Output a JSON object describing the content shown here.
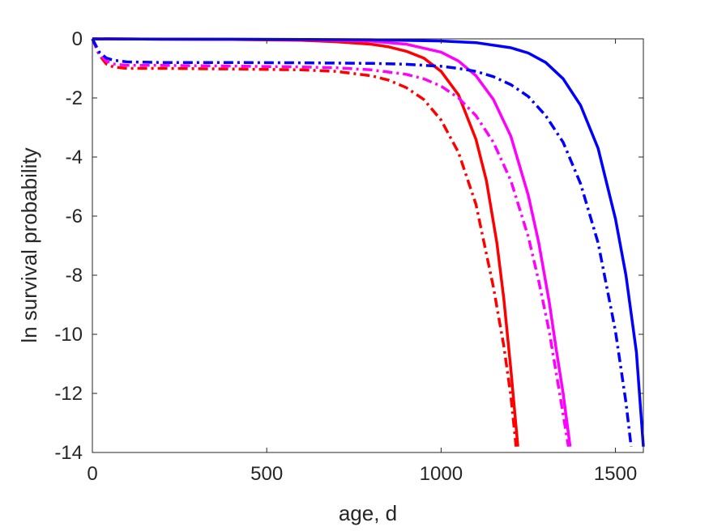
{
  "chart_data": {
    "type": "line",
    "title": "",
    "xlabel": "age, d",
    "ylabel": "ln survival probability",
    "xlim": [
      0,
      1580
    ],
    "ylim": [
      -14,
      0
    ],
    "xticks": [
      0,
      500,
      1000,
      1500
    ],
    "yticks": [
      0,
      -2,
      -4,
      -6,
      -8,
      -10,
      -12,
      -14
    ],
    "xtick_labels": [
      "0",
      "500",
      "1000",
      "1500"
    ],
    "ytick_labels": [
      "0",
      "-2",
      "-4",
      "-6",
      "-8",
      "-10",
      "-12",
      "-14"
    ],
    "grid": false,
    "legend": "none",
    "series": [
      {
        "color": "#ff0000",
        "style": "solid",
        "x": [
          0,
          200,
          400,
          600,
          700,
          800,
          850,
          900,
          950,
          1000,
          1050,
          1100,
          1130,
          1160,
          1180,
          1200,
          1220
        ],
        "y": [
          0,
          -0.01,
          -0.02,
          -0.05,
          -0.1,
          -0.18,
          -0.27,
          -0.42,
          -0.65,
          -1.1,
          -1.9,
          -3.4,
          -4.8,
          -6.9,
          -8.8,
          -11.2,
          -13.8
        ]
      },
      {
        "color": "#ff0000",
        "style": "dashdot",
        "x": [
          0,
          20,
          40,
          60,
          100,
          200,
          400,
          600,
          700,
          800,
          850,
          900,
          950,
          1000,
          1050,
          1100,
          1150,
          1180,
          1200,
          1215
        ],
        "y": [
          0,
          -0.55,
          -0.85,
          -0.95,
          -1.0,
          -1.0,
          -1.02,
          -1.05,
          -1.1,
          -1.25,
          -1.4,
          -1.65,
          -2.05,
          -2.75,
          -3.85,
          -5.6,
          -8.4,
          -10.4,
          -12.1,
          -13.8
        ]
      },
      {
        "color": "#ff00ff",
        "style": "solid",
        "x": [
          0,
          200,
          400,
          600,
          800,
          900,
          1000,
          1050,
          1100,
          1150,
          1200,
          1250,
          1280,
          1310,
          1330,
          1350,
          1370
        ],
        "y": [
          0,
          -0.01,
          -0.02,
          -0.03,
          -0.08,
          -0.18,
          -0.45,
          -0.75,
          -1.25,
          -2.05,
          -3.3,
          -5.3,
          -6.9,
          -8.9,
          -10.5,
          -12.0,
          -13.8
        ]
      },
      {
        "color": "#ff00ff",
        "style": "dashdot",
        "x": [
          0,
          20,
          40,
          60,
          100,
          200,
          400,
          600,
          700,
          800,
          900,
          950,
          1000,
          1050,
          1100,
          1150,
          1200,
          1250,
          1280,
          1310,
          1340,
          1365
        ],
        "y": [
          0,
          -0.5,
          -0.75,
          -0.85,
          -0.9,
          -0.9,
          -0.92,
          -0.95,
          -0.98,
          -1.05,
          -1.2,
          -1.35,
          -1.6,
          -2.0,
          -2.6,
          -3.5,
          -4.8,
          -6.7,
          -8.2,
          -9.9,
          -12.0,
          -13.8
        ]
      },
      {
        "color": "#0000ff",
        "style": "solid",
        "x": [
          0,
          200,
          400,
          600,
          800,
          1000,
          1100,
          1200,
          1250,
          1300,
          1350,
          1400,
          1450,
          1500,
          1530,
          1560,
          1580
        ],
        "y": [
          0,
          -0.01,
          -0.01,
          -0.02,
          -0.03,
          -0.07,
          -0.13,
          -0.3,
          -0.48,
          -0.8,
          -1.35,
          -2.25,
          -3.7,
          -6.1,
          -8.0,
          -10.6,
          -13.8
        ]
      },
      {
        "color": "#0000ff",
        "style": "dashdot",
        "x": [
          0,
          20,
          40,
          60,
          100,
          200,
          400,
          600,
          800,
          900,
          1000,
          1050,
          1100,
          1150,
          1200,
          1250,
          1300,
          1350,
          1400,
          1450,
          1500,
          1530,
          1545
        ],
        "y": [
          0,
          -0.45,
          -0.65,
          -0.72,
          -0.78,
          -0.8,
          -0.8,
          -0.81,
          -0.83,
          -0.86,
          -0.93,
          -1.0,
          -1.1,
          -1.28,
          -1.55,
          -1.95,
          -2.6,
          -3.5,
          -4.9,
          -6.9,
          -9.9,
          -12.3,
          -13.8
        ]
      }
    ]
  }
}
